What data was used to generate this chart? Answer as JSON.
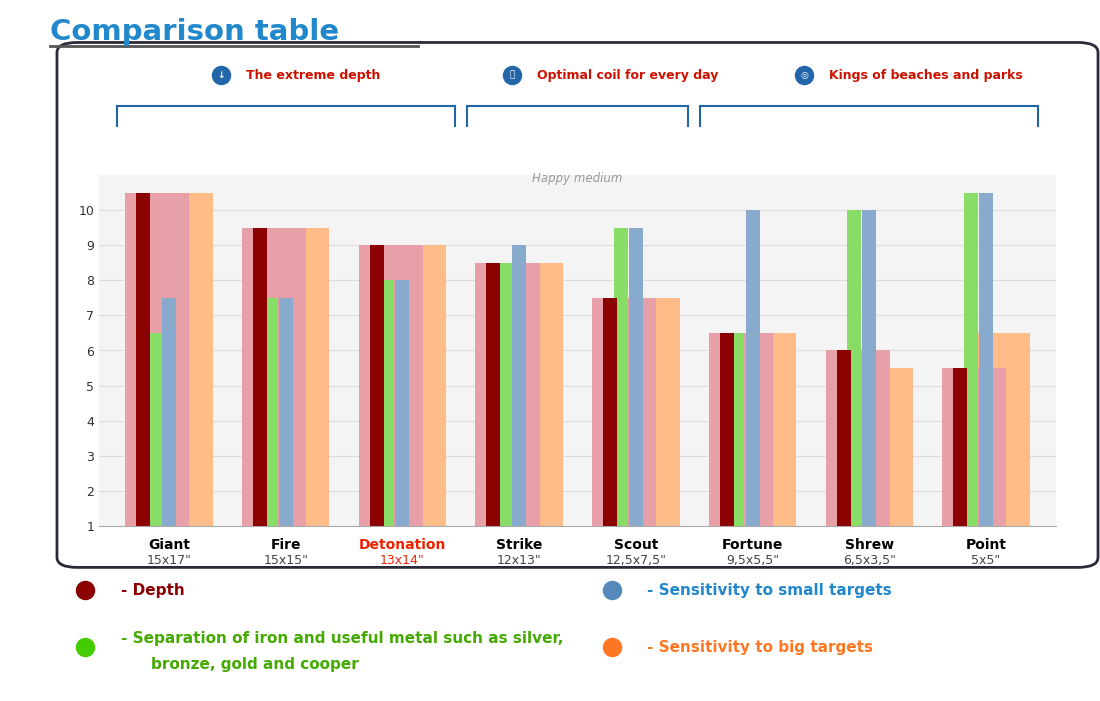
{
  "title": "Comparison table",
  "categories": [
    "Giant",
    "Fire",
    "Detonation",
    "Strike",
    "Scout",
    "Fortune",
    "Shrew",
    "Point"
  ],
  "sizes": [
    "15x17\"",
    "15x15\"",
    "13x14\"",
    "12x13\"",
    "12,5x7,5\"",
    "9,5x5,5\"",
    "6,5x3,5\"",
    "5x5\""
  ],
  "detonation_index": 2,
  "bar_data": {
    "depth": [
      10.5,
      9.5,
      9.0,
      8.5,
      7.5,
      6.5,
      6.0,
      5.5
    ],
    "separation": [
      6.5,
      7.5,
      8.0,
      8.5,
      9.5,
      6.5,
      10.0,
      10.5
    ],
    "small": [
      7.5,
      7.5,
      8.0,
      9.0,
      9.5,
      10.0,
      10.0,
      10.5
    ],
    "big": [
      10.5,
      9.5,
      9.0,
      8.5,
      7.5,
      6.5,
      5.5,
      6.5
    ]
  },
  "colors": {
    "depth_bg": "#E8A0A8",
    "depth_fg": "#8B0000",
    "separation": "#88DD66",
    "small": "#88AACC",
    "big": "#FFBB88"
  },
  "group_labels": [
    "The extreme depth",
    "Optimal coil for every day",
    "Kings of beaches and parks"
  ],
  "group_ranges": [
    [
      0,
      2
    ],
    [
      3,
      4
    ],
    [
      5,
      7
    ]
  ],
  "group_centers": [
    1.0,
    3.5,
    6.0
  ],
  "happy_medium_text": "Happy medium",
  "bg_color": "#FFFFFF",
  "outer_border_color": "#F0C040",
  "inner_border_color": "#2A2A3A",
  "title_color": "#2288CC",
  "title_underline_color": "#555555",
  "group_label_color": "#CC1100",
  "group_icon_color": "#2266AA",
  "bracket_color": "#2266AA",
  "detonation_name_color": "#EE2200",
  "legend_depth_color": "#8B0000",
  "legend_sep_color": "#44CC00",
  "legend_small_color": "#5588BB",
  "legend_big_color": "#FF7722",
  "legend_text_depth_color": "#8B0000",
  "legend_text_sep_color": "#44AA00",
  "legend_text_small_color": "#2288CC",
  "legend_text_big_color": "#FF7722",
  "axis_tick_color": "#333333",
  "grid_color": "#DDDDDD",
  "ymin": 1,
  "ymax": 11,
  "yticks": [
    1,
    2,
    3,
    4,
    5,
    6,
    7,
    8,
    9,
    10
  ],
  "chart_bg": "#F4F4F4"
}
